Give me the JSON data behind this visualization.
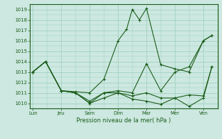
{
  "xlabel": "Pression niveau de la mer( hPa )",
  "background_color": "#cce8e0",
  "line_color": "#1a5c1a",
  "grid_color": "#99ccbb",
  "ylim": [
    1009.5,
    1019.5
  ],
  "yticks": [
    1010,
    1011,
    1012,
    1013,
    1014,
    1015,
    1016,
    1017,
    1018,
    1019
  ],
  "x_labels": [
    "Lun",
    "Jeu",
    "Sam",
    "Dim",
    "Mar",
    "Mer",
    "Ven"
  ],
  "x_positions": [
    0,
    1,
    2,
    3,
    4,
    5,
    6
  ],
  "xlim": [
    -0.1,
    6.5
  ],
  "series": [
    {
      "x": [
        0,
        0.45,
        1.0,
        1.5,
        2.0,
        2.5,
        3.0,
        3.3,
        3.5,
        3.75,
        4.0,
        4.5,
        5.0,
        5.5,
        6.0,
        6.3
      ],
      "y": [
        1013,
        1014,
        1011.2,
        1011.1,
        1011.0,
        1012.3,
        1016.0,
        1017.1,
        1019.0,
        1018.0,
        1019.1,
        1013.7,
        1013.3,
        1013.0,
        1016.0,
        1016.5
      ]
    },
    {
      "x": [
        0,
        0.45,
        1.0,
        1.5,
        2.0,
        2.5,
        3.0,
        3.5,
        4.0,
        4.5,
        5.0,
        5.5,
        6.0,
        6.3
      ],
      "y": [
        1013,
        1014,
        1011.2,
        1011.0,
        1010.0,
        1011.0,
        1011.2,
        1011.0,
        1013.8,
        1011.2,
        1013.0,
        1013.5,
        1016.0,
        1016.5
      ]
    },
    {
      "x": [
        0,
        0.45,
        1.0,
        1.5,
        2.0,
        2.5,
        3.0,
        3.5,
        4.0,
        4.5,
        5.0,
        5.5,
        6.0,
        6.3
      ],
      "y": [
        1013,
        1014,
        1011.2,
        1011.0,
        1010.2,
        1011.0,
        1011.0,
        1010.7,
        1011.0,
        1010.5,
        1010.5,
        1010.8,
        1010.7,
        1013.5
      ]
    },
    {
      "x": [
        0,
        0.45,
        1.0,
        1.5,
        2.0,
        2.5,
        3.0,
        3.5,
        4.0,
        4.5,
        5.0,
        5.5,
        6.0,
        6.3
      ],
      "y": [
        1013,
        1014,
        1011.2,
        1011.0,
        1010.0,
        1010.5,
        1011.0,
        1010.4,
        1010.2,
        1009.9,
        1010.5,
        1009.7,
        1010.5,
        1013.5
      ]
    }
  ]
}
